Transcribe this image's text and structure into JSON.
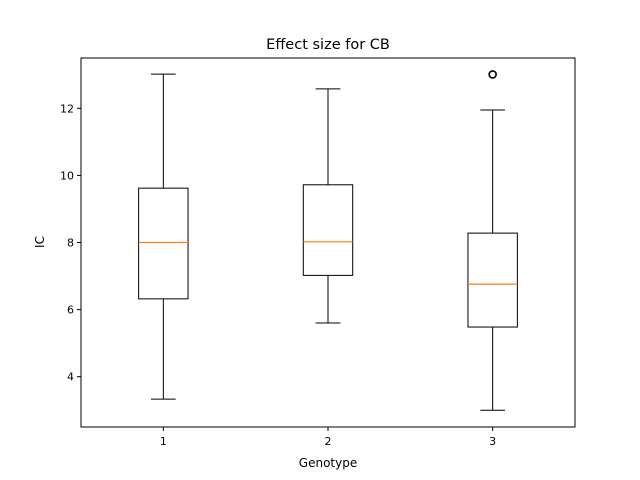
{
  "chart_data": {
    "type": "box",
    "title": "Effect size for CB",
    "xlabel": "Genotype",
    "ylabel": "IC",
    "xlim": [
      0.5,
      3.5
    ],
    "ylim": [
      2.5,
      13.5
    ],
    "yticks": [
      4,
      6,
      8,
      10,
      12
    ],
    "grid": false,
    "categories": [
      "1",
      "2",
      "3"
    ],
    "boxes": [
      {
        "label": "1",
        "whisker_low": 3.33,
        "q1": 6.32,
        "median": 8.0,
        "q3": 9.62,
        "whisker_high": 13.02,
        "outliers": []
      },
      {
        "label": "2",
        "whisker_low": 5.6,
        "q1": 7.02,
        "median": 8.02,
        "q3": 9.72,
        "whisker_high": 12.58,
        "outliers": []
      },
      {
        "label": "3",
        "whisker_low": 3.0,
        "q1": 5.48,
        "median": 6.76,
        "q3": 8.28,
        "whisker_high": 11.95,
        "outliers": [
          13.01
        ]
      }
    ],
    "colors": {
      "box": "#000000",
      "median": "#ff7f0e",
      "axes": "#000000"
    }
  }
}
